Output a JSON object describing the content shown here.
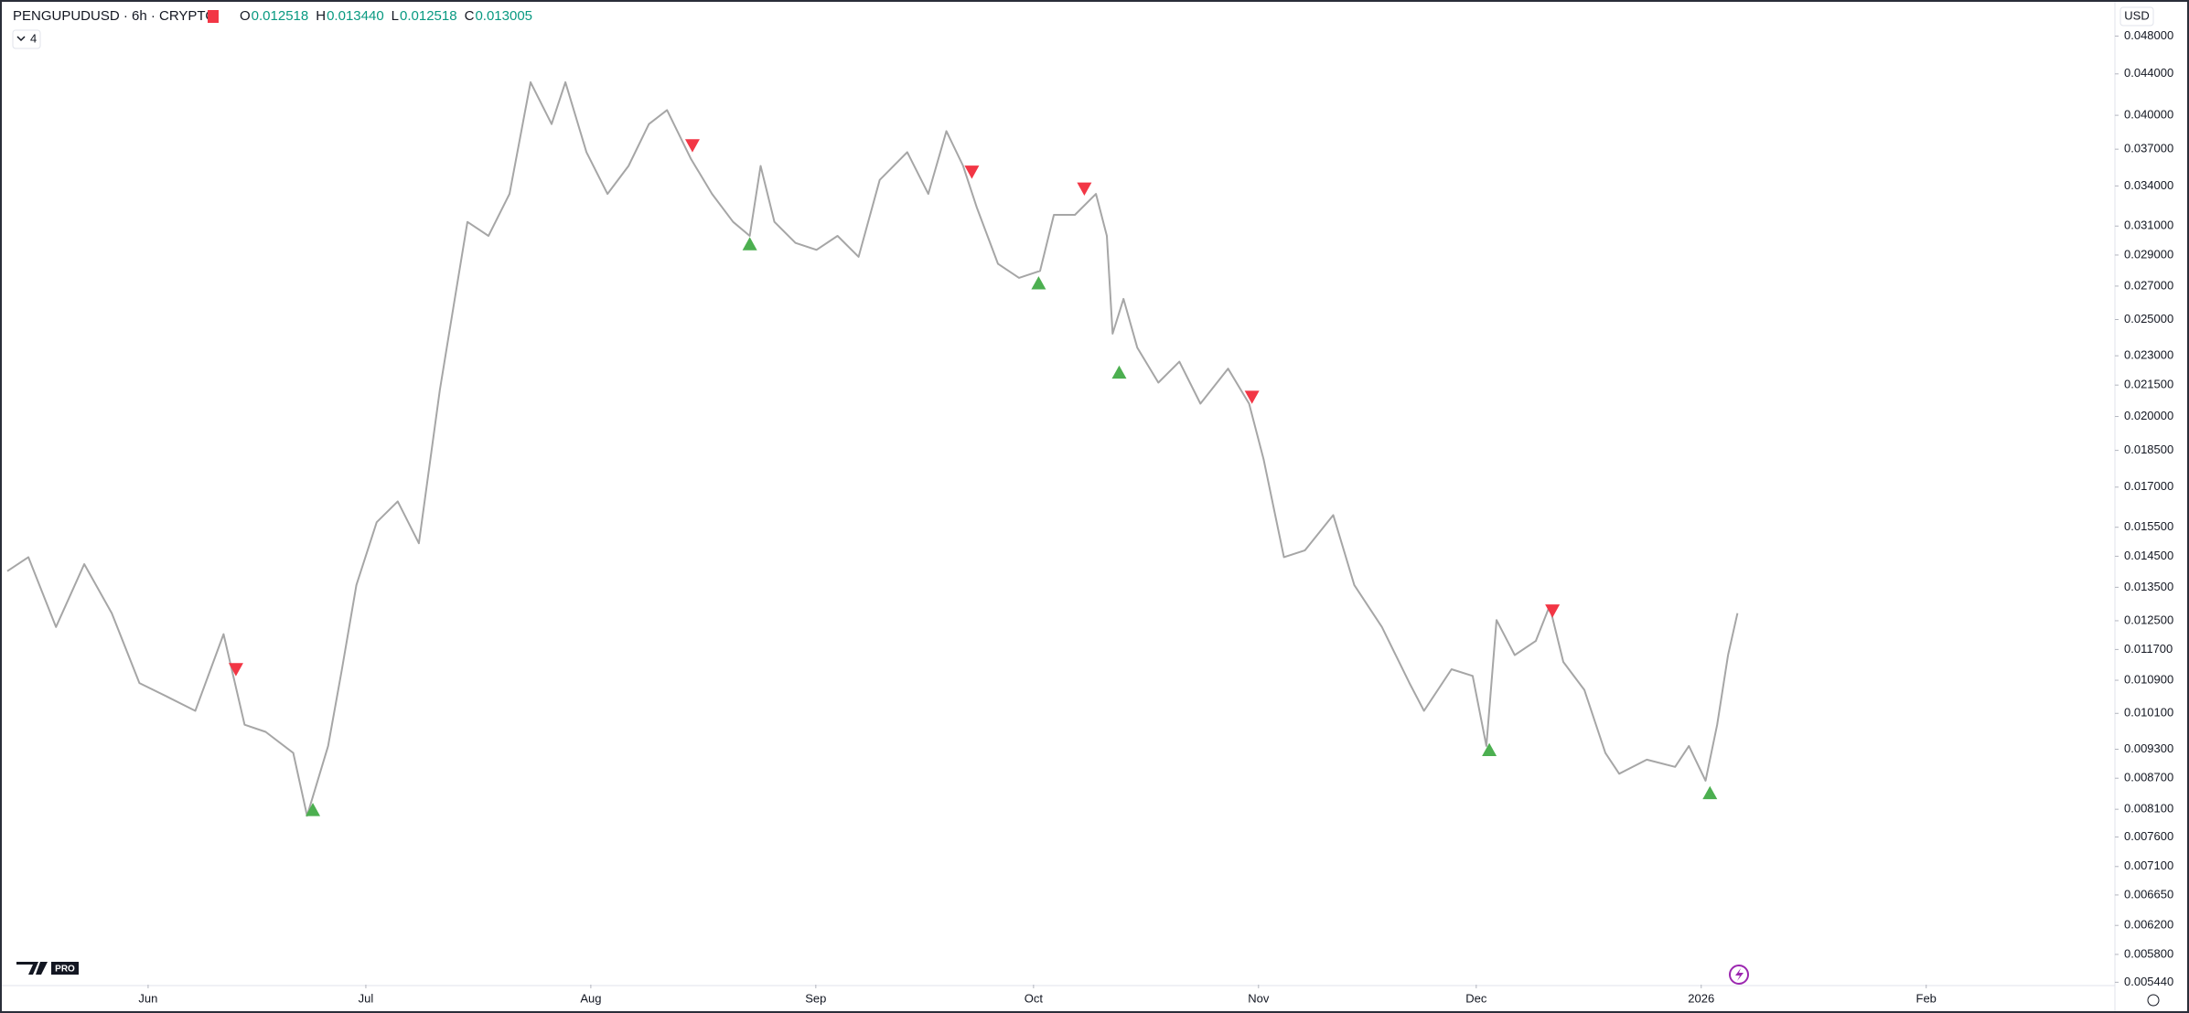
{
  "header": {
    "symbol": "PENGUPUDUSD · 6h · CRYPTO",
    "ohlc": [
      {
        "label": "O",
        "value": "0.012518"
      },
      {
        "label": "H",
        "value": "0.013440"
      },
      {
        "label": "L",
        "value": "0.012518"
      },
      {
        "label": "C",
        "value": "0.013005"
      }
    ],
    "indicators": "4",
    "currency": "USD",
    "logo_badge": "PRO"
  },
  "chart_data": {
    "type": "line",
    "log_scale": true,
    "color": "#a6a6a6",
    "x": [
      -19.4,
      -16.5,
      -12.7,
      -8.8,
      -5.0,
      -1.2,
      2.7,
      6.5,
      10.4,
      13.3,
      16.2,
      20.0,
      21.9,
      24.8,
      26.7,
      28.7,
      31.5,
      34.4,
      37.3,
      40.2,
      42.1,
      44.0,
      46.9,
      49.8,
      52.7,
      55.6,
      57.5,
      60.4,
      63.3,
      66.2,
      69.0,
      71.5,
      74.8,
      77.7,
      80.6,
      82.9,
      84.4,
      86.3,
      89.2,
      92.1,
      95.0,
      97.9,
      100.8,
      104.6,
      107.5,
      110.0,
      112.3,
      114.2,
      117.1,
      120.0,
      122.9,
      124.8,
      127.7,
      130.6,
      132.1,
      132.9,
      134.4,
      136.3,
      139.2,
      142.1,
      145.0,
      148.8,
      151.7,
      153.7,
      156.5,
      159.4,
      163.3,
      166.2,
      170.0,
      173.8,
      175.8,
      179.6,
      182.5,
      184.4,
      185.8,
      188.3,
      191.2,
      193.1,
      195.0,
      197.9,
      200.8,
      202.7,
      206.5,
      210.4,
      212.3,
      214.6,
      216.2,
      217.7,
      219.0
    ],
    "values": [
      0.01401,
      0.01447,
      0.01232,
      0.01424,
      0.01272,
      0.01083,
      0.01049,
      0.01016,
      0.01212,
      0.00984,
      0.00968,
      0.00922,
      0.00798,
      0.00937,
      0.01118,
      0.01357,
      0.01568,
      0.01645,
      0.01494,
      0.02128,
      0.0258,
      0.0313,
      0.03031,
      0.03338,
      0.04317,
      0.0392,
      0.04317,
      0.03675,
      0.03338,
      0.0356,
      0.0392,
      0.04048,
      0.03617,
      0.03338,
      0.0313,
      0.03031,
      0.0356,
      0.0313,
      0.02982,
      0.02935,
      0.03031,
      0.02888,
      0.03447,
      0.03675,
      0.03338,
      0.03857,
      0.0356,
      0.03232,
      0.02842,
      0.02752,
      0.02796,
      0.03181,
      0.03181,
      0.03338,
      0.03031,
      0.0242,
      0.02622,
      0.02343,
      0.02162,
      0.02269,
      0.0206,
      0.02233,
      0.0206,
      0.01812,
      0.01447,
      0.0147,
      0.01594,
      0.01357,
      0.01232,
      0.01083,
      0.01016,
      0.01118,
      0.01101,
      0.00937,
      0.01252,
      0.01155,
      0.01193,
      0.01293,
      0.01137,
      0.01066,
      0.00922,
      0.00879,
      0.00908,
      0.00893,
      0.00937,
      0.00865,
      0.00984,
      0.01155,
      0.01272
    ],
    "markers": [
      {
        "shape": "down",
        "color": "#f23645",
        "x": [
          12.1,
          75.0,
          113.5,
          129.0,
          152.1,
          193.5
        ],
        "values": [
          0.01115,
          0.03723,
          0.03503,
          0.0337,
          0.02087,
          0.01276
        ]
      },
      {
        "shape": "up",
        "color": "#4caf50",
        "x": [
          22.7,
          82.9,
          122.7,
          133.8,
          184.8,
          215.2
        ],
        "values": [
          0.00811,
          0.02982,
          0.02725,
          0.02219,
          0.00931,
          0.00843
        ]
      }
    ],
    "xlim": [
      -19.4,
      271.0
    ],
    "xticks": [
      {
        "value": 0,
        "label": "Jun"
      },
      {
        "value": 30,
        "label": "Jul"
      },
      {
        "value": 61,
        "label": "Aug"
      },
      {
        "value": 92,
        "label": "Sep"
      },
      {
        "value": 122,
        "label": "Oct"
      },
      {
        "value": 153,
        "label": "Nov"
      },
      {
        "value": 183,
        "label": "Dec"
      },
      {
        "value": 214,
        "label": "2026"
      },
      {
        "value": 245,
        "label": "Feb"
      }
    ],
    "ylim": [
      0.00541,
      0.0515
    ],
    "yticks": [
      {
        "value": 0.048,
        "label": "0.048000"
      },
      {
        "value": 0.044,
        "label": "0.044000"
      },
      {
        "value": 0.04,
        "label": "0.040000"
      },
      {
        "value": 0.037,
        "label": "0.037000"
      },
      {
        "value": 0.034,
        "label": "0.034000"
      },
      {
        "value": 0.031,
        "label": "0.031000"
      },
      {
        "value": 0.029,
        "label": "0.029000"
      },
      {
        "value": 0.027,
        "label": "0.027000"
      },
      {
        "value": 0.025,
        "label": "0.025000"
      },
      {
        "value": 0.023,
        "label": "0.023000"
      },
      {
        "value": 0.0215,
        "label": "0.021500"
      },
      {
        "value": 0.02,
        "label": "0.020000"
      },
      {
        "value": 0.0185,
        "label": "0.018500"
      },
      {
        "value": 0.017,
        "label": "0.017000"
      },
      {
        "value": 0.0155,
        "label": "0.015500"
      },
      {
        "value": 0.0145,
        "label": "0.014500"
      },
      {
        "value": 0.0135,
        "label": "0.013500"
      },
      {
        "value": 0.0125,
        "label": "0.012500"
      },
      {
        "value": 0.0117,
        "label": "0.011700"
      },
      {
        "value": 0.0109,
        "label": "0.010900"
      },
      {
        "value": 0.0101,
        "label": "0.010100"
      },
      {
        "value": 0.0093,
        "label": "0.009300"
      },
      {
        "value": 0.0087,
        "label": "0.008700"
      },
      {
        "value": 0.0081,
        "label": "0.008100"
      },
      {
        "value": 0.0076,
        "label": "0.007600"
      },
      {
        "value": 0.0071,
        "label": "0.007100"
      },
      {
        "value": 0.00665,
        "label": "0.006650"
      },
      {
        "value": 0.0062,
        "label": "0.006200"
      },
      {
        "value": 0.0058,
        "label": "0.005800"
      },
      {
        "value": 0.00544,
        "label": "0.005440"
      }
    ]
  }
}
